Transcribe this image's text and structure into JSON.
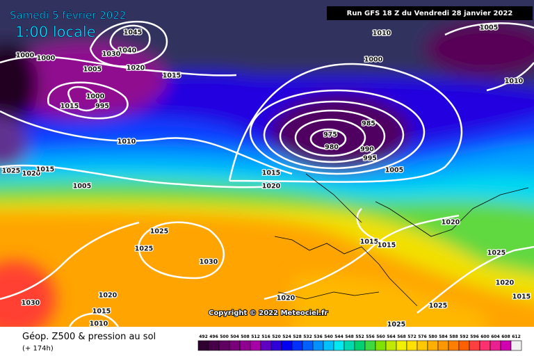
{
  "header": {
    "date": "Samedi 5 février 2022",
    "time": "1:00 locale",
    "run": "Run GFS 18 Z du Vendredi 28 janvier 2022"
  },
  "isobar_labels": [
    1045,
    1040,
    1030,
    1020,
    1015,
    1000,
    1000,
    1005,
    1000,
    995,
    1015,
    1010,
    1025,
    1020,
    1015,
    1005,
    1010,
    1005,
    1000,
    1010,
    985,
    975,
    980,
    990,
    995,
    1005,
    1015,
    1020,
    1025,
    1025,
    1030,
    1020,
    1015,
    1010,
    1030,
    1015,
    1015,
    1020,
    1025,
    1020,
    1015,
    1020,
    1025,
    1025
  ],
  "copyright": "Copyright © 2022 Meteociel.fr",
  "legend": {
    "title": "Géop. Z500 & pression au sol",
    "lead": "(+ 174h)",
    "ticks": [
      492,
      496,
      500,
      504,
      508,
      512,
      516,
      520,
      524,
      528,
      532,
      536,
      540,
      544,
      548,
      552,
      556,
      560,
      564,
      568,
      572,
      576,
      580,
      584,
      588,
      592,
      596,
      600,
      604,
      608,
      612
    ],
    "colors": [
      "#300030",
      "#480048",
      "#600060",
      "#780078",
      "#900090",
      "#a800a8",
      "#6000c0",
      "#3000d8",
      "#0000f0",
      "#0030ff",
      "#0060ff",
      "#0090ff",
      "#00c0ff",
      "#00e8f0",
      "#00d8b0",
      "#00d070",
      "#40d840",
      "#80e000",
      "#c0e800",
      "#f0f000",
      "#ffe000",
      "#ffc800",
      "#ffb000",
      "#ff9800",
      "#ff8000",
      "#ff6000",
      "#ff4040",
      "#ff3070",
      "#e82090",
      "#d000b0",
      "#f0f0f0"
    ]
  }
}
